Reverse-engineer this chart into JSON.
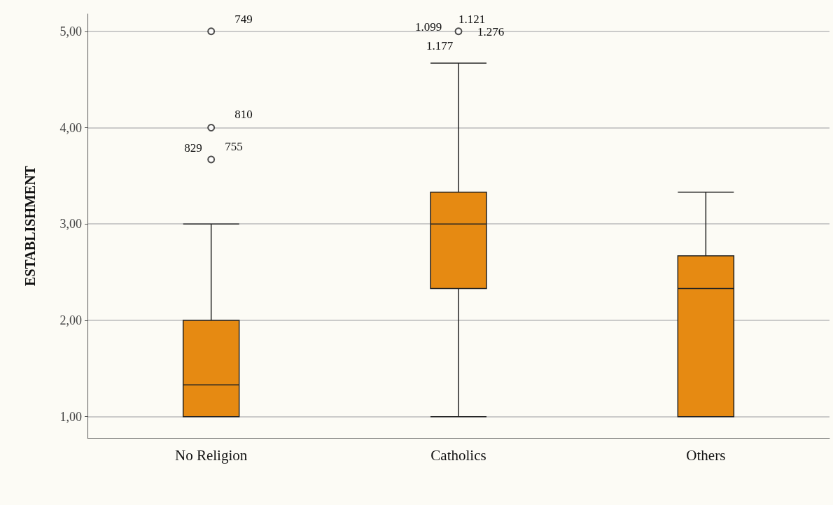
{
  "chart_data": {
    "type": "box",
    "ylabel": "ESTABLISHMENT",
    "categories": [
      "No Religion",
      "Catholics",
      "Others"
    ],
    "color": "#e68a12",
    "boxes": [
      {
        "low": 1,
        "q1": 1,
        "median": 1.33,
        "q3": 2,
        "high": 3,
        "outliers": [
          3.67,
          4,
          5
        ]
      },
      {
        "low": 1,
        "q1": 2.33,
        "median": 3,
        "q3": 3.33,
        "high": 4.67,
        "outliers": [
          5
        ]
      },
      {
        "low": 1,
        "q1": 1,
        "median": 2.33,
        "q3": 2.67,
        "high": 3.33
      }
    ],
    "ylim": [
      0.78,
      5.18
    ],
    "yticks": [
      {
        "value": 1,
        "label": "1,00"
      },
      {
        "value": 2,
        "label": "2,00"
      },
      {
        "value": 3,
        "label": "3,00"
      },
      {
        "value": 4,
        "label": "4,00"
      },
      {
        "value": 5,
        "label": "5,00"
      }
    ],
    "grid": "y",
    "annotations": [
      "749",
      "810",
      "755",
      "829",
      "1.121",
      "1.099",
      "1.177",
      "1.276"
    ]
  }
}
